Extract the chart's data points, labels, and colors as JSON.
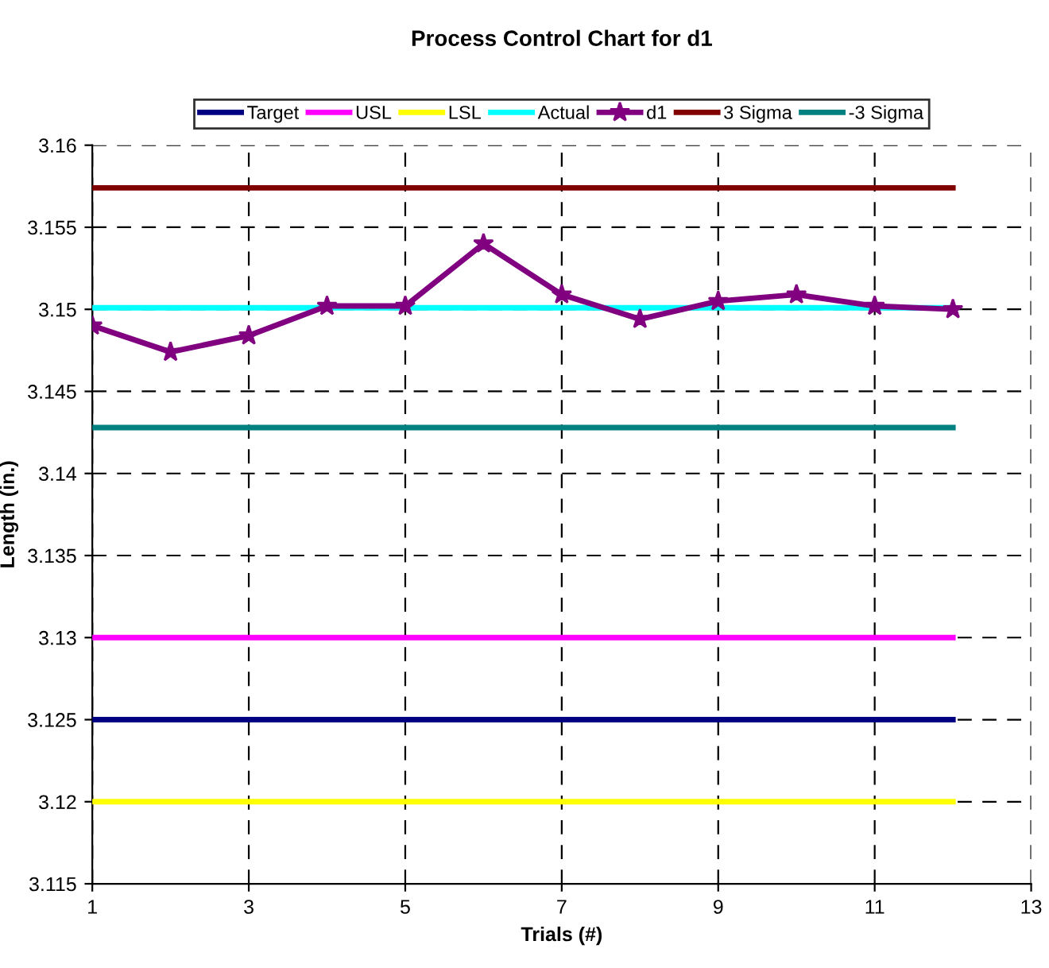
{
  "chart_data": {
    "type": "line",
    "title": "Process Control Chart for d1",
    "xlabel": "Trials (#)",
    "ylabel": "Length (in.)",
    "x": [
      1,
      2,
      3,
      4,
      5,
      6,
      7,
      8,
      9,
      10,
      11,
      12
    ],
    "series": [
      {
        "name": "Target",
        "color": "#000080",
        "marker": "none",
        "values": [
          3.125,
          3.125,
          3.125,
          3.125,
          3.125,
          3.125,
          3.125,
          3.125,
          3.125,
          3.125,
          3.125,
          3.125
        ]
      },
      {
        "name": "USL",
        "color": "#ff00ff",
        "marker": "none",
        "values": [
          3.13,
          3.13,
          3.13,
          3.13,
          3.13,
          3.13,
          3.13,
          3.13,
          3.13,
          3.13,
          3.13,
          3.13
        ]
      },
      {
        "name": "LSL",
        "color": "#ffff00",
        "marker": "none",
        "values": [
          3.12,
          3.12,
          3.12,
          3.12,
          3.12,
          3.12,
          3.12,
          3.12,
          3.12,
          3.12,
          3.12,
          3.12
        ]
      },
      {
        "name": "Actual",
        "color": "#00ffff",
        "marker": "none",
        "values": [
          3.1501,
          3.1501,
          3.1501,
          3.1501,
          3.1501,
          3.1501,
          3.1501,
          3.1501,
          3.1501,
          3.1501,
          3.1501,
          3.1501
        ]
      },
      {
        "name": "d1",
        "color": "#800080",
        "marker": "star",
        "values": [
          3.149,
          3.1474,
          3.1484,
          3.1502,
          3.1502,
          3.154,
          3.1509,
          3.1494,
          3.1505,
          3.1509,
          3.1502,
          3.15
        ]
      },
      {
        "name": "3 Sigma",
        "color": "#800000",
        "marker": "none",
        "values": [
          3.1574,
          3.1574,
          3.1574,
          3.1574,
          3.1574,
          3.1574,
          3.1574,
          3.1574,
          3.1574,
          3.1574,
          3.1574,
          3.1574
        ]
      },
      {
        "name": "-3 Sigma",
        "color": "#008080",
        "marker": "none",
        "values": [
          3.1428,
          3.1428,
          3.1428,
          3.1428,
          3.1428,
          3.1428,
          3.1428,
          3.1428,
          3.1428,
          3.1428,
          3.1428,
          3.1428
        ]
      }
    ],
    "xlim": [
      1,
      13
    ],
    "xticks": [
      1,
      3,
      5,
      7,
      9,
      11,
      13
    ],
    "ylim": [
      3.115,
      3.16
    ],
    "yticks": [
      3.115,
      3.12,
      3.125,
      3.13,
      3.135,
      3.14,
      3.145,
      3.15,
      3.155,
      3.16
    ],
    "grid": true,
    "legend": "top",
    "line_style": "solid"
  }
}
